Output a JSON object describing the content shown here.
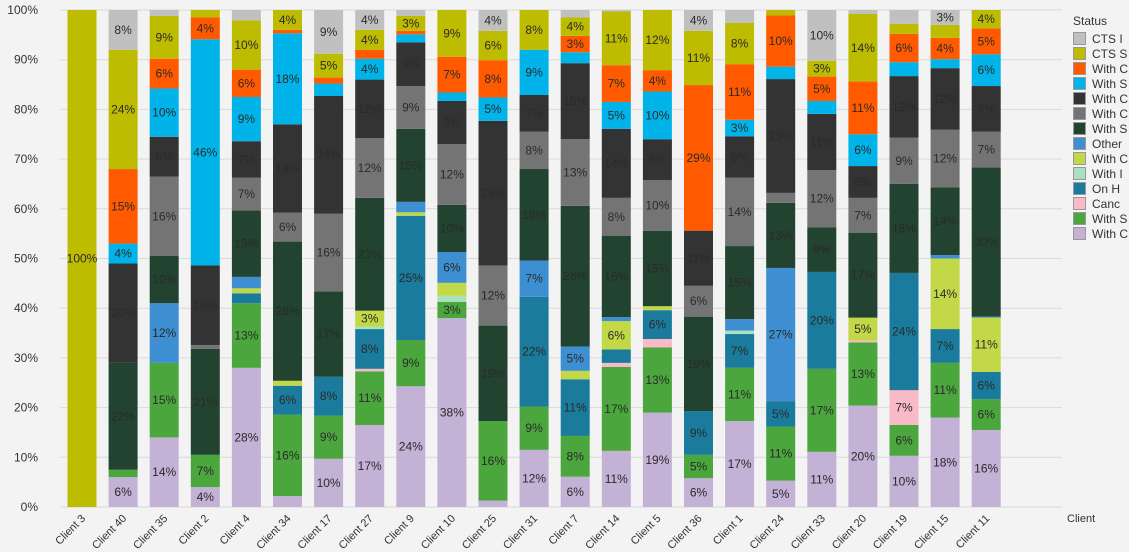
{
  "chart_data": {
    "type": "bar",
    "stacked": "percent",
    "xlabel": "Client",
    "ylabel": "",
    "ylim": [
      0,
      100
    ],
    "yticks": [
      "0%",
      "10%",
      "20%",
      "30%",
      "40%",
      "50%",
      "60%",
      "70%",
      "80%",
      "90%",
      "100%"
    ],
    "grid": true,
    "legend_title": "Status",
    "legend_position": "right",
    "categories": [
      "Client 3",
      "Client 40",
      "Client 35",
      "Client 2",
      "Client 4",
      "Client 34",
      "Client 17",
      "Client 27",
      "Client 9",
      "Client 10",
      "Client 25",
      "Client 31",
      "Client 7",
      "Client 14",
      "Client 5",
      "Client 36",
      "Client 1",
      "Client 24",
      "Client 33",
      "Client 20",
      "Client 19",
      "Client 15",
      "Client 11"
    ],
    "series": [
      {
        "name": "With C",
        "color": "#c3b1d6",
        "values": [
          0,
          6,
          14,
          4,
          28,
          2.2,
          9.7,
          16.5,
          24.3,
          38,
          1.3,
          11.5,
          6.1,
          11.3,
          19,
          5.8,
          17.3,
          5.3,
          11.1,
          20.4,
          10.3,
          18,
          15.5
        ]
      },
      {
        "name": "With S",
        "color": "#4ba63d",
        "values": [
          0,
          1.5,
          15,
          6.5,
          13,
          16.4,
          8.7,
          10.8,
          9.3,
          3.3,
          16,
          8.7,
          8.2,
          16.9,
          13.1,
          4.7,
          10.7,
          10.9,
          16.7,
          12.7,
          6.2,
          11,
          6.2
        ]
      },
      {
        "name": "Canc",
        "color": "#f9bac8",
        "values": [
          0,
          0,
          0,
          0,
          0,
          0,
          0,
          0.5,
          0,
          0,
          0,
          0,
          0,
          0.8,
          1.7,
          0,
          0,
          0,
          0,
          0.4,
          7,
          0,
          0
        ]
      },
      {
        "name": "On H",
        "color": "#1a7b9d",
        "values": [
          0,
          0,
          0,
          0,
          2,
          5.8,
          7.8,
          8,
          25,
          0,
          0,
          22.1,
          11.4,
          2.7,
          5.8,
          8.8,
          6.8,
          5.1,
          19.5,
          0,
          23.6,
          6.8,
          5.5
        ]
      },
      {
        "name": "With I",
        "color": "#a8e2bf",
        "values": [
          0,
          0,
          0,
          0,
          0,
          0,
          0,
          0.5,
          0,
          1.2,
          0,
          0,
          0,
          0,
          0,
          0,
          0.7,
          0,
          0,
          0,
          0,
          0,
          0
        ]
      },
      {
        "name": "With C",
        "color": "#c3d846",
        "values": [
          0,
          0,
          0,
          0,
          1,
          1,
          0,
          3.2,
          0.7,
          2.6,
          0,
          0,
          1.7,
          5.7,
          0.8,
          0,
          0,
          0,
          0,
          4.6,
          0,
          14.2,
          10.9
        ]
      },
      {
        "name": "Other",
        "color": "#3d8fd1",
        "values": [
          0,
          0,
          12,
          0,
          2.3,
          0,
          0,
          0,
          2.1,
          6.2,
          0,
          7.3,
          4.9,
          0.8,
          0,
          0,
          2.3,
          26.8,
          0,
          0,
          0,
          0.7,
          0.2
        ]
      },
      {
        "name": "With S",
        "color": "#21432f",
        "values": [
          0,
          21.5,
          9.5,
          21.3,
          13.4,
          28,
          17.2,
          22.7,
          14.7,
          9.5,
          19.2,
          18.4,
          28.3,
          16.4,
          15.2,
          19,
          14.7,
          13.1,
          9,
          17.1,
          17.9,
          13.6,
          30
        ]
      },
      {
        "name": "With C",
        "color": "#747474",
        "values": [
          0,
          0,
          16,
          0.8,
          6.6,
          5.8,
          15.6,
          12,
          8.6,
          12.2,
          12.1,
          7.5,
          13.4,
          7.6,
          10.2,
          6.2,
          13.8,
          2,
          11.5,
          7,
          9.3,
          11.6,
          7.2
        ]
      },
      {
        "name": "With C",
        "color": "#333333",
        "values": [
          0,
          20,
          8,
          16,
          7.3,
          17.8,
          23.7,
          11.8,
          8.8,
          8.7,
          29.1,
          7.4,
          15.3,
          13.9,
          8.2,
          11.1,
          8.3,
          22.9,
          11.3,
          6.4,
          12.4,
          12.4,
          9.2
        ]
      },
      {
        "name": "With S",
        "color": "#00b4e9",
        "values": [
          0,
          4,
          9.7,
          45.5,
          8.9,
          18.3,
          2.5,
          4.2,
          1.6,
          1.7,
          4.7,
          9.1,
          2.2,
          5.4,
          9.6,
          0,
          3.3,
          2.5,
          2.6,
          6.4,
          2.8,
          1.8,
          6.4
        ]
      },
      {
        "name": "With C",
        "color": "#ff5a00",
        "values": [
          0,
          15,
          6,
          4.4,
          5.5,
          0.7,
          1.2,
          1.8,
          0.7,
          7.2,
          7.5,
          0,
          3.3,
          7.4,
          4.3,
          29.3,
          11.2,
          10.3,
          4.9,
          10.6,
          5.7,
          4.3,
          5.2
        ]
      },
      {
        "name": "CTS S",
        "color": "#bdbc00",
        "values": [
          100,
          24,
          8.6,
          1.5,
          9.9,
          4,
          4.8,
          4,
          3,
          9.4,
          5.9,
          8,
          3.7,
          10.8,
          12.1,
          10.9,
          8.3,
          1.1,
          3.2,
          13.6,
          2,
          2.6,
          3.7
        ]
      },
      {
        "name": "CTS I",
        "color": "#c0c0c0",
        "values": [
          0,
          8,
          1.2,
          0,
          2.1,
          0,
          8.8,
          4,
          1.2,
          0,
          4.2,
          0,
          1.5,
          0.3,
          0,
          4.2,
          2.6,
          0,
          10.2,
          0.8,
          2.8,
          3,
          0
        ]
      }
    ]
  }
}
